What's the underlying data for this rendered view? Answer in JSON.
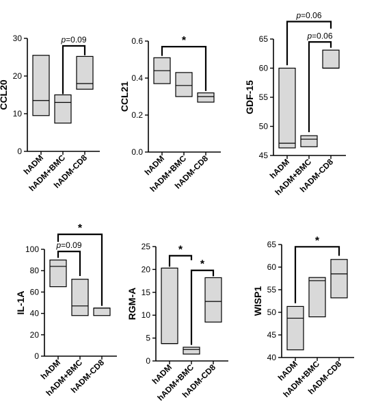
{
  "chart_data": [
    {
      "type": "box",
      "ylabel": "CCL20",
      "ylim": [
        0,
        30
      ],
      "yticks": [
        0,
        10,
        20,
        30
      ],
      "tick_labels": [
        "0",
        "10",
        "20",
        "30"
      ],
      "categories": [
        "hADM",
        "hADM+BMC",
        "hADM-CD8"
      ],
      "boxes": [
        {
          "min": 9.5,
          "median": 13.5,
          "max": 25.5
        },
        {
          "min": 7.5,
          "median": 13.0,
          "max": 15.0
        },
        {
          "min": 16.5,
          "median": 18.0,
          "max": 25.2
        }
      ],
      "annotations": [
        {
          "from": 1,
          "to": 2,
          "y": 28.0,
          "drop_from": 15.2,
          "drop_to": 25.5,
          "label": "p=0.09",
          "kind": "p"
        }
      ]
    },
    {
      "type": "box",
      "ylabel": "CCL21",
      "ylim": [
        0,
        0.6
      ],
      "yticks": [
        0,
        0.2,
        0.4,
        0.6
      ],
      "tick_labels": [
        "0.0",
        "0.2",
        "0.4",
        "0.6"
      ],
      "categories": [
        "hADM",
        "hADM+BMC",
        "hADM-CD8"
      ],
      "boxes": [
        {
          "min": 0.37,
          "median": 0.44,
          "max": 0.51
        },
        {
          "min": 0.3,
          "median": 0.36,
          "max": 0.43
        },
        {
          "min": 0.27,
          "median": 0.3,
          "max": 0.32
        }
      ],
      "annotations": [
        {
          "from": 0,
          "to": 2,
          "y": 0.57,
          "drop_from": 0.52,
          "drop_to": 0.33,
          "label": "*",
          "kind": "star"
        }
      ]
    },
    {
      "type": "box",
      "ylabel": "GDF-15",
      "ylim": [
        45,
        65
      ],
      "yticks": [
        45,
        50,
        55,
        60,
        65
      ],
      "tick_labels": [
        "45",
        "50",
        "55",
        "60",
        "65"
      ],
      "categories": [
        "hADM",
        "hADM+BMC",
        "hADM-CD8"
      ],
      "boxes": [
        {
          "min": 46.3,
          "median": 47.1,
          "max": 60.0
        },
        {
          "min": 46.5,
          "median": 47.8,
          "max": 48.4
        },
        {
          "min": 60.0,
          "median": 60.0,
          "max": 63.1
        }
      ],
      "annotations": [
        {
          "from": 0,
          "to": 2,
          "y": 68.0,
          "drop_from": 60.5,
          "drop_to": 66.8,
          "label": "p=0.06",
          "kind": "p"
        },
        {
          "from": 1,
          "to": 2,
          "y": 64.5,
          "drop_from": 49.0,
          "drop_to": 63.5,
          "label": "p=0.06",
          "kind": "p"
        }
      ]
    },
    {
      "type": "box",
      "ylabel": "IL-1A",
      "ylim": [
        0,
        100
      ],
      "yticks": [
        0,
        20,
        40,
        60,
        80,
        100
      ],
      "tick_labels": [
        "0",
        "20",
        "40",
        "60",
        "80",
        "100"
      ],
      "categories": [
        "hADM",
        "hADM+BMC",
        "hADM-CD8"
      ],
      "boxes": [
        {
          "min": 65,
          "median": 84,
          "max": 90
        },
        {
          "min": 38,
          "median": 47,
          "max": 72
        },
        {
          "min": 38,
          "median": 45,
          "max": 45
        }
      ],
      "annotations": [
        {
          "from": 0,
          "to": 2,
          "y": 114,
          "drop_from": 107,
          "drop_to": 47,
          "label": "*",
          "kind": "star"
        },
        {
          "from": 0,
          "to": 1,
          "y": 98,
          "drop_from": 92,
          "drop_to": 75,
          "label": "p=0.09",
          "kind": "p"
        }
      ]
    },
    {
      "type": "box",
      "ylabel": "RGM-A",
      "ylim": [
        0,
        25
      ],
      "yticks": [
        0,
        5,
        10,
        15,
        20,
        25
      ],
      "tick_labels": [
        "0",
        "5",
        "10",
        "15",
        "20",
        "25"
      ],
      "categories": [
        "hADM",
        "hADM+BMC",
        "hADM-CD8"
      ],
      "boxes": [
        {
          "min": 3.8,
          "median": 3.8,
          "max": 20.3
        },
        {
          "min": 1.5,
          "median": 2.5,
          "max": 3.0
        },
        {
          "min": 8.5,
          "median": 13.0,
          "max": 18.2
        }
      ],
      "annotations": [
        {
          "from": 0,
          "to": 1,
          "y": 23.0,
          "drop_from": 20.6,
          "drop_to": 22.0,
          "label": "*",
          "kind": "star"
        },
        {
          "from": 1,
          "to": 2,
          "y": 19.8,
          "drop_from": 3.5,
          "drop_to": 18.5,
          "label": "*",
          "kind": "star"
        }
      ]
    },
    {
      "type": "box",
      "ylabel": "WISP1",
      "ylim": [
        40,
        65
      ],
      "yticks": [
        40,
        45,
        50,
        55,
        60,
        65
      ],
      "tick_labels": [
        "40",
        "45",
        "50",
        "55",
        "60",
        "65"
      ],
      "categories": [
        "hADM",
        "hADM+BMC",
        "hADM-CD8"
      ],
      "boxes": [
        {
          "min": 41.7,
          "median": 48.7,
          "max": 51.3
        },
        {
          "min": 49.0,
          "median": 57.0,
          "max": 57.7
        },
        {
          "min": 53.2,
          "median": 58.5,
          "max": 61.7
        }
      ],
      "annotations": [
        {
          "from": 0,
          "to": 2,
          "y": 64.5,
          "drop_from": 52.0,
          "drop_to": 62.5,
          "label": "*",
          "kind": "star"
        }
      ]
    }
  ]
}
